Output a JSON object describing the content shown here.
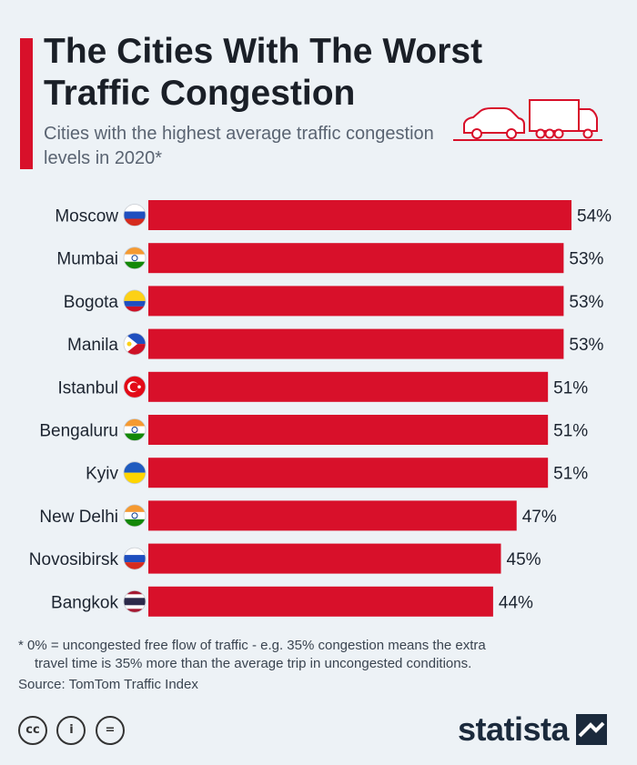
{
  "header": {
    "title": "The Cities With The Worst Traffic Congestion",
    "subtitle": "Cities with the highest average traffic congestion levels in 2020*"
  },
  "chart_data": {
    "type": "bar",
    "orientation": "horizontal",
    "categories": [
      "Moscow",
      "Mumbai",
      "Bogota",
      "Manila",
      "Istanbul",
      "Bengaluru",
      "Kyiv",
      "New Delhi",
      "Novosibirsk",
      "Bangkok"
    ],
    "values": [
      54,
      53,
      53,
      53,
      51,
      51,
      51,
      47,
      45,
      44
    ],
    "value_labels": [
      "54%",
      "53%",
      "53%",
      "53%",
      "51%",
      "51%",
      "51%",
      "47%",
      "45%",
      "44%"
    ],
    "flags": [
      "russia",
      "india",
      "colombia",
      "philippines",
      "turkey",
      "india",
      "ukraine",
      "india",
      "russia",
      "thailand"
    ],
    "bar_color": "#d8102a",
    "xlim": [
      0,
      54
    ],
    "grid": false,
    "title": "The Cities With The Worst Traffic Congestion",
    "xlabel": "",
    "ylabel": ""
  },
  "footnote": {
    "line1": "* 0% = uncongested free flow of traffic - e.g. 35% congestion means the extra",
    "line2": "travel time is 35% more than the average trip in uncongested conditions."
  },
  "source": "Source: TomTom Traffic Index",
  "license_icons": [
    "cc",
    "by",
    "nd"
  ],
  "brand": {
    "name": "statista"
  },
  "colors": {
    "accent": "#d8102a",
    "background": "#edf2f6",
    "text": "#1c2430"
  }
}
